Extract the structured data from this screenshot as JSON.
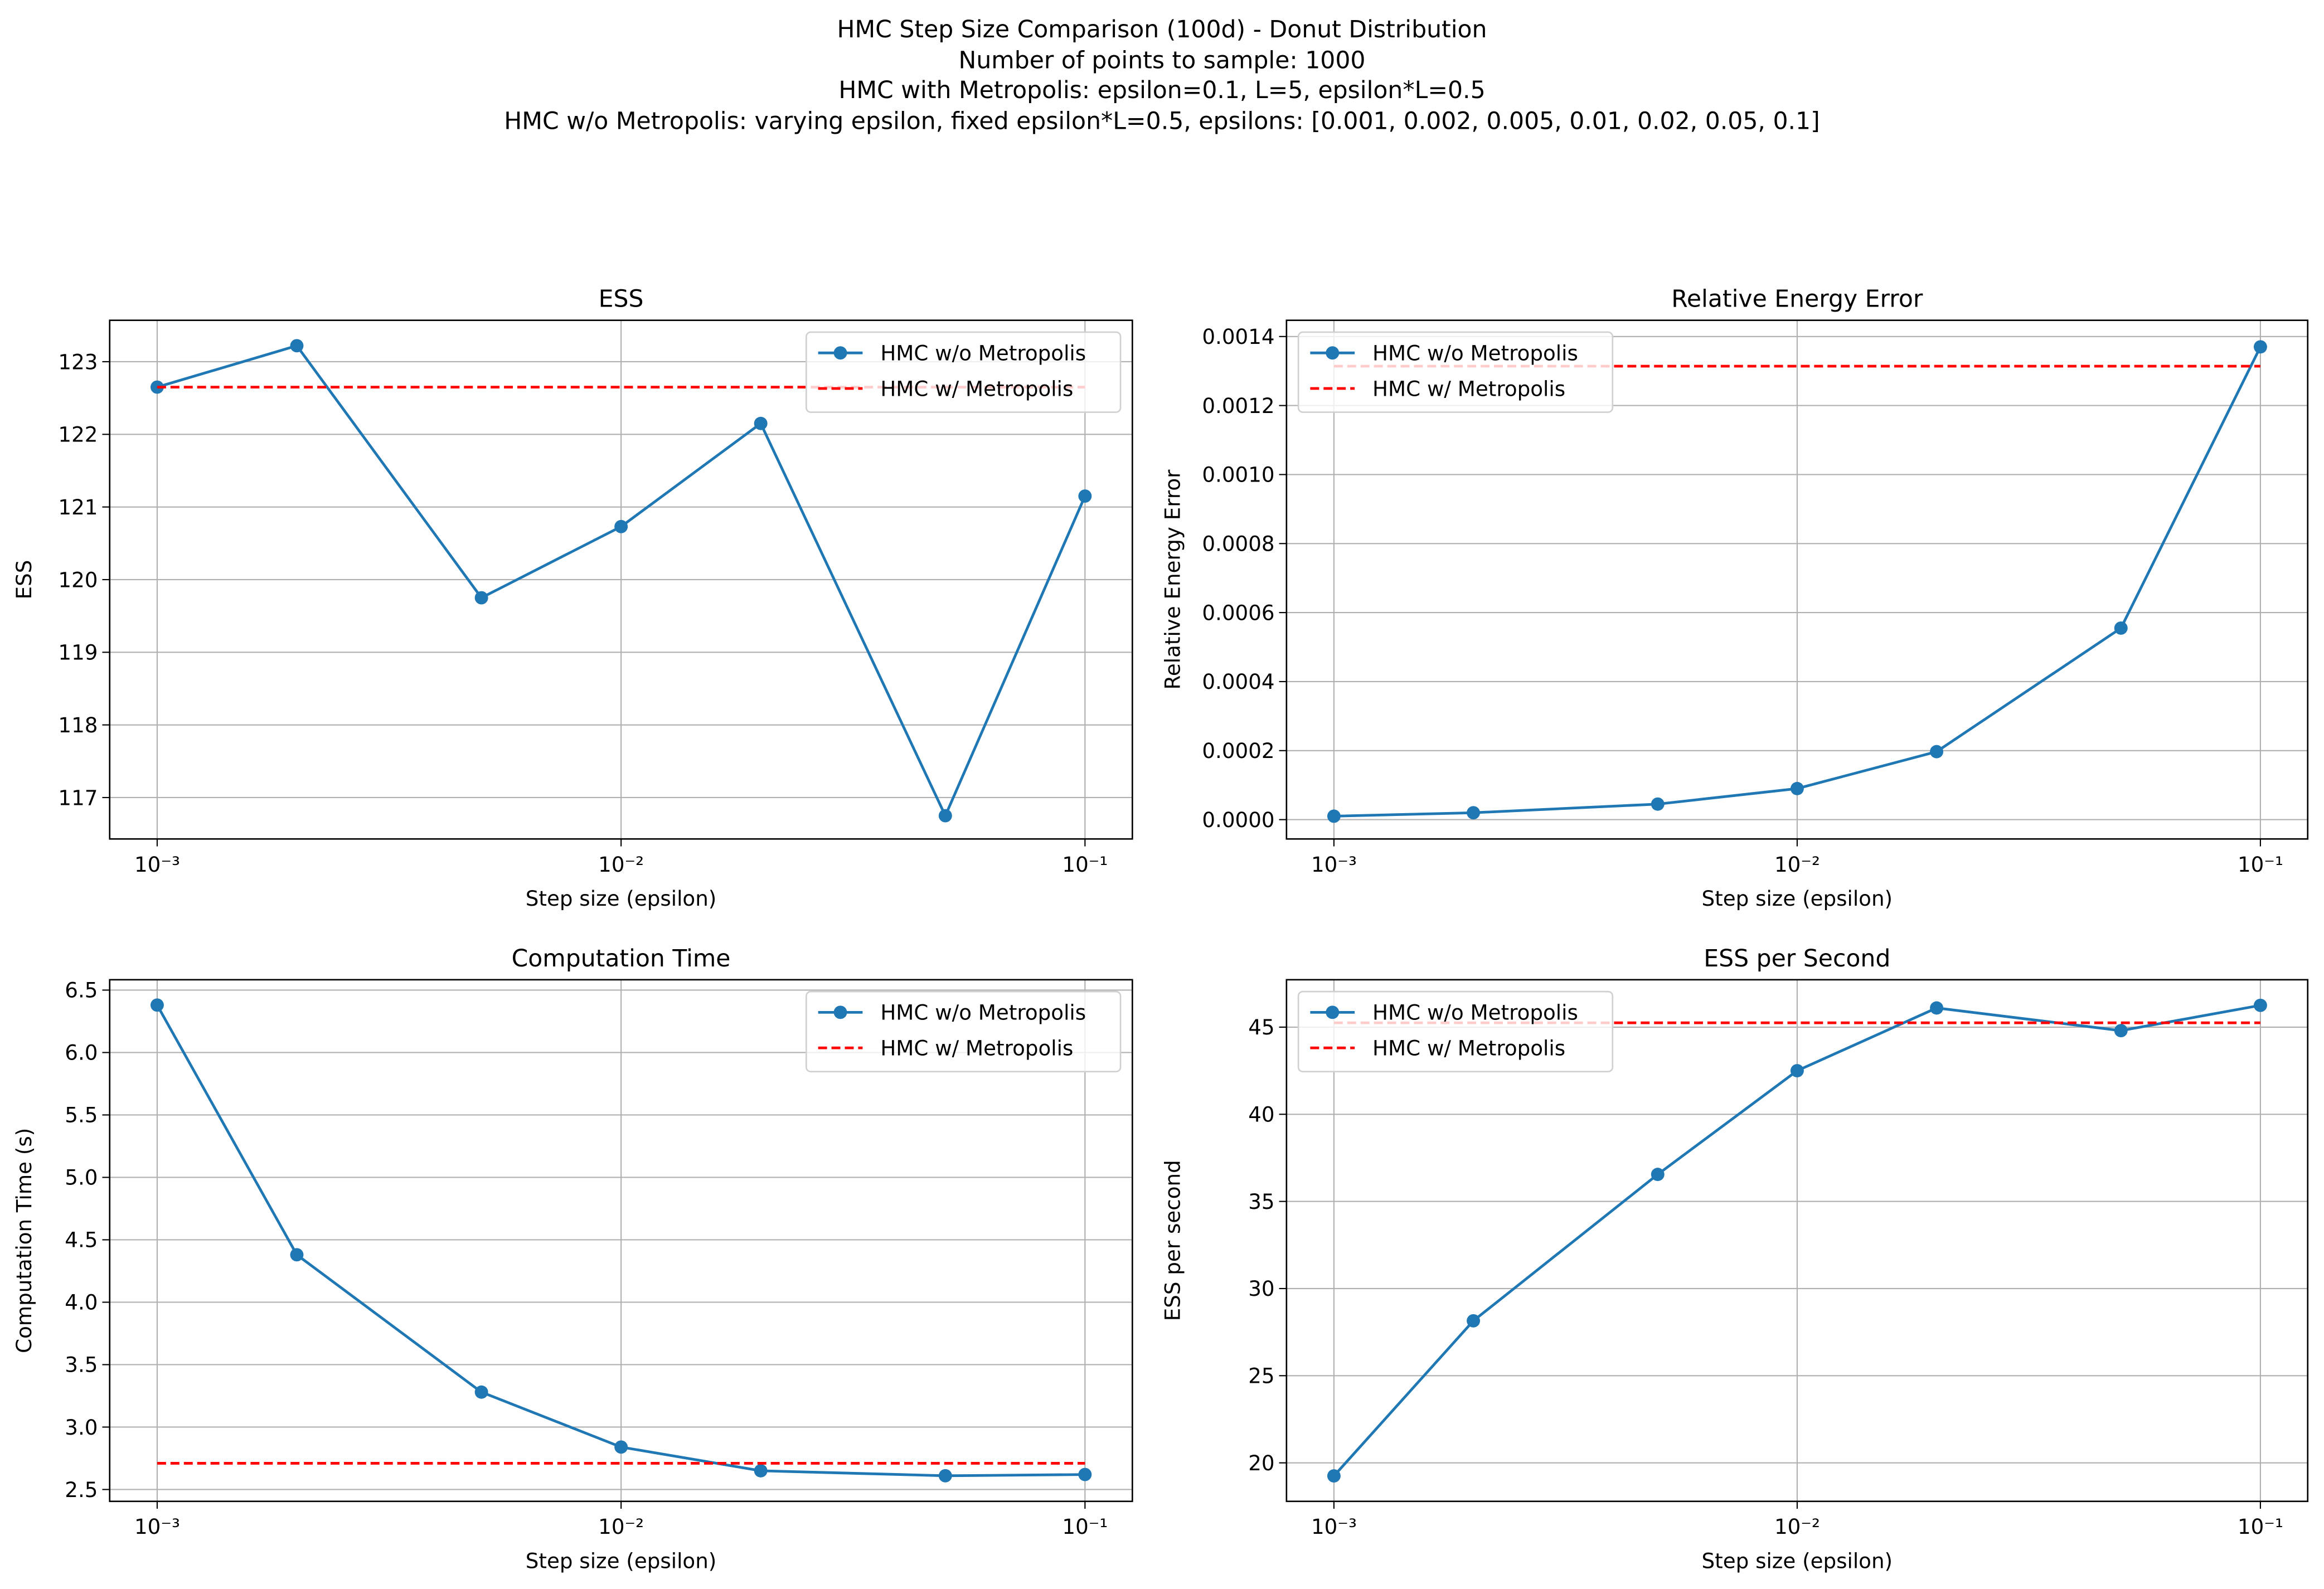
{
  "suptitle": [
    "HMC Step Size Comparison (100d) - Donut Distribution",
    "Number of points to sample: 1000",
    "HMC with Metropolis: epsilon=0.1, L=5, epsilon*L=0.5",
    "HMC w/o Metropolis: varying epsilon, fixed epsilon*L=0.5, epsilons: [0.001, 0.002, 0.005, 0.01, 0.02, 0.05, 0.1]"
  ],
  "chart_data": [
    {
      "type": "line",
      "title": "ESS",
      "xlabel": "Step size (epsilon)",
      "ylabel": "ESS",
      "xscale": "log",
      "grid": true,
      "legend": "upper right",
      "x": [
        0.001,
        0.002,
        0.005,
        0.01,
        0.02,
        0.05,
        0.1
      ],
      "xlim": [
        0.00079,
        0.1265
      ],
      "xticks": [
        {
          "value": 0.001,
          "label": "10⁻³"
        },
        {
          "value": 0.01,
          "label": "10⁻²"
        },
        {
          "value": 0.1,
          "label": "10⁻¹"
        }
      ],
      "ylim": [
        116.43,
        123.57
      ],
      "yticks": [
        117,
        118,
        119,
        120,
        121,
        122,
        123
      ],
      "series": [
        {
          "name": "HMC w/o Metropolis",
          "color": "#1f77b4",
          "linestyle": "solid",
          "marker": "o",
          "values": [
            122.65,
            123.22,
            119.75,
            120.73,
            122.15,
            116.75,
            121.15
          ]
        },
        {
          "name": "HMC w/ Metropolis",
          "color": "#ff0000",
          "linestyle": "dashed",
          "values": [
            122.65,
            122.65,
            122.65,
            122.65,
            122.65,
            122.65,
            122.65
          ]
        }
      ]
    },
    {
      "type": "line",
      "title": "Relative Energy Error",
      "xlabel": "Step size (epsilon)",
      "ylabel": "Relative Energy Error",
      "xscale": "log",
      "grid": true,
      "legend": "upper left",
      "x": [
        0.001,
        0.002,
        0.005,
        0.01,
        0.02,
        0.05,
        0.1
      ],
      "xlim": [
        0.00079,
        0.1265
      ],
      "xticks": [
        {
          "value": 0.001,
          "label": "10⁻³"
        },
        {
          "value": 0.01,
          "label": "10⁻²"
        },
        {
          "value": 0.1,
          "label": "10⁻¹"
        }
      ],
      "ylim": [
        -5.6e-05,
        0.001447
      ],
      "yticks": [
        {
          "value": 0,
          "label": "0.0000"
        },
        0.0002,
        0.0004,
        0.0006,
        0.0008,
        {
          "value": 0.001,
          "label": "0.0010"
        },
        0.0012,
        0.0014
      ],
      "series": [
        {
          "name": "HMC w/o Metropolis",
          "color": "#1f77b4",
          "linestyle": "solid",
          "marker": "o",
          "values": [
            1e-05,
            2e-05,
            4.5e-05,
            9e-05,
            0.000197,
            0.000555,
            0.00137
          ]
        },
        {
          "name": "HMC w/ Metropolis",
          "color": "#ff0000",
          "linestyle": "dashed",
          "values": [
            0.001314,
            0.001314,
            0.001314,
            0.001314,
            0.001314,
            0.001314,
            0.001314
          ]
        }
      ]
    },
    {
      "type": "line",
      "title": "Computation Time",
      "xlabel": "Step size (epsilon)",
      "ylabel": "Computation Time (s)",
      "xscale": "log",
      "grid": true,
      "legend": "upper right",
      "x": [
        0.001,
        0.002,
        0.005,
        0.01,
        0.02,
        0.05,
        0.1
      ],
      "xlim": [
        0.00079,
        0.1265
      ],
      "xticks": [
        {
          "value": 0.001,
          "label": "10⁻³"
        },
        {
          "value": 0.01,
          "label": "10⁻²"
        },
        {
          "value": 0.1,
          "label": "10⁻¹"
        }
      ],
      "ylim": [
        2.405,
        6.583
      ],
      "yticks": [
        2.5,
        {
          "value": 3,
          "label": "3.0"
        },
        3.5,
        {
          "value": 4,
          "label": "4.0"
        },
        4.5,
        {
          "value": 5,
          "label": "5.0"
        },
        5.5,
        {
          "value": 6,
          "label": "6.0"
        },
        6.5
      ],
      "series": [
        {
          "name": "HMC w/o Metropolis",
          "color": "#1f77b4",
          "linestyle": "solid",
          "marker": "o",
          "values": [
            6.38,
            4.38,
            3.28,
            2.84,
            2.65,
            2.61,
            2.62
          ]
        },
        {
          "name": "HMC w/ Metropolis",
          "color": "#ff0000",
          "linestyle": "dashed",
          "values": [
            2.71,
            2.71,
            2.71,
            2.71,
            2.71,
            2.71,
            2.71
          ]
        }
      ]
    },
    {
      "type": "line",
      "title": "ESS per Second",
      "xlabel": "Step size (epsilon)",
      "ylabel": "ESS per second",
      "xscale": "log",
      "grid": true,
      "legend": "upper left",
      "x": [
        0.001,
        0.002,
        0.005,
        0.01,
        0.02,
        0.05,
        0.1
      ],
      "xlim": [
        0.00079,
        0.1265
      ],
      "xticks": [
        {
          "value": 0.001,
          "label": "10⁻³"
        },
        {
          "value": 0.01,
          "label": "10⁻²"
        },
        {
          "value": 0.1,
          "label": "10⁻¹"
        }
      ],
      "ylim": [
        17.79,
        47.72
      ],
      "yticks": [
        20,
        25,
        30,
        35,
        40,
        45
      ],
      "series": [
        {
          "name": "HMC w/o Metropolis",
          "color": "#1f77b4",
          "linestyle": "solid",
          "marker": "o",
          "values": [
            19.25,
            28.15,
            36.55,
            42.5,
            46.1,
            44.8,
            46.25
          ]
        },
        {
          "name": "HMC w/ Metropolis",
          "color": "#ff0000",
          "linestyle": "dashed",
          "values": [
            45.25,
            45.25,
            45.25,
            45.25,
            45.25,
            45.25,
            45.25
          ]
        }
      ]
    }
  ]
}
